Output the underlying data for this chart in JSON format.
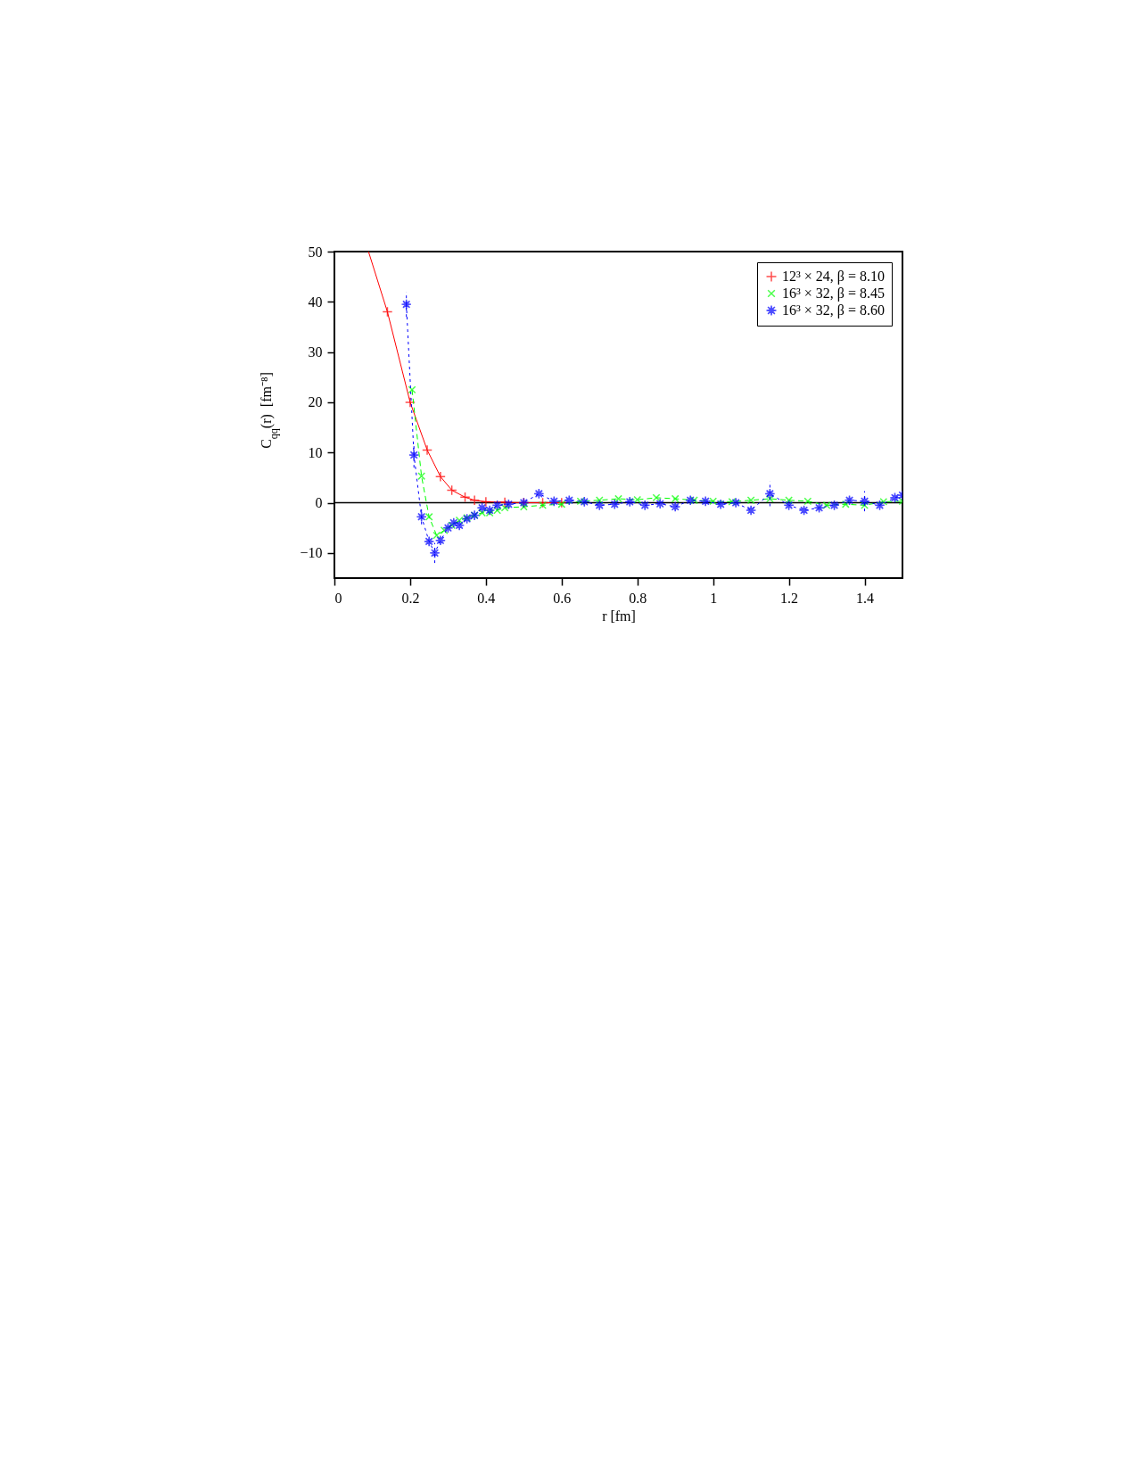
{
  "chart_data": {
    "type": "line",
    "xlabel": "r [fm]",
    "ylabel": "C$_{qq}$(r)  [fm⁻⁸]",
    "xlim": [
      0,
      1.5
    ],
    "xticks": [
      0,
      0.2,
      0.4,
      0.6,
      0.8,
      1,
      1.2,
      1.4
    ],
    "ylim": [
      -15,
      50
    ],
    "yticks": [
      -10,
      0,
      10,
      20,
      30,
      40,
      50
    ],
    "grid": false,
    "legend": "top right",
    "ref_lines": [
      {
        "axis": "y",
        "value": 0,
        "color": "#000000"
      }
    ],
    "series": [
      {
        "name": "12³ × 24, β = 8.10",
        "color": "#ff0000",
        "marker": "cross",
        "line_style": "solid",
        "x": [
          0.14,
          0.2,
          0.245,
          0.28,
          0.31,
          0.345,
          0.37,
          0.4,
          0.45,
          0.5,
          0.55,
          0.6
        ],
        "values": [
          38,
          20,
          10.5,
          5.2,
          2.5,
          1.1,
          0.5,
          0.2,
          0.1,
          0,
          0,
          0
        ]
      },
      {
        "type": "line",
        "color": "#ff0000",
        "marker": "none",
        "line_style": "solid",
        "x": [
          0.09,
          0.14
        ],
        "values": [
          50,
          38
        ]
      },
      {
        "name": "16³ × 32, β = 8.45",
        "color": "#00ff00",
        "marker": "cross",
        "line_style": "dashed",
        "x": [
          0.205,
          0.23,
          0.25,
          0.27,
          0.29,
          0.31,
          0.33,
          0.35,
          0.37,
          0.39,
          0.41,
          0.43,
          0.45,
          0.5,
          0.55,
          0.6,
          0.65,
          0.7,
          0.75,
          0.8,
          0.85,
          0.9,
          0.95,
          1.0,
          1.05,
          1.1,
          1.15,
          1.2,
          1.25,
          1.3,
          1.35,
          1.4,
          1.45,
          1.5
        ],
        "values": [
          22.5,
          5.3,
          -2.8,
          -6.5,
          -5.5,
          -4.5,
          -3.5,
          -3,
          -2.5,
          -2,
          -2,
          -1.5,
          -1,
          -0.8,
          -0.5,
          -0.3,
          0.3,
          0.5,
          0.8,
          0.6,
          1,
          0.8,
          0.5,
          0.3,
          0.2,
          0.5,
          0.8,
          0.5,
          0.3,
          -0.5,
          -0.3,
          -0.5,
          0.2,
          0.3
        ]
      },
      {
        "name": "16³ × 32, β = 8.60",
        "color": "#0000ff",
        "marker": "star",
        "line_style": "dotted",
        "x": [
          0.19,
          0.21,
          0.23,
          0.25,
          0.265,
          0.28,
          0.3,
          0.315,
          0.33,
          0.35,
          0.37,
          0.39,
          0.41,
          0.43,
          0.46,
          0.5,
          0.54,
          0.58,
          0.62,
          0.66,
          0.7,
          0.74,
          0.78,
          0.82,
          0.86,
          0.9,
          0.94,
          0.98,
          1.02,
          1.06,
          1.1,
          1.15,
          1.2,
          1.24,
          1.28,
          1.32,
          1.36,
          1.4,
          1.44,
          1.48,
          1.5
        ],
        "values": [
          39.5,
          9.5,
          -2.8,
          -7.7,
          -10,
          -7.5,
          -5,
          -4,
          -4.5,
          -3.2,
          -2.5,
          -1,
          -1.5,
          -0.5,
          -0.3,
          0,
          1.8,
          0.3,
          0.5,
          0.2,
          -0.5,
          -0.3,
          0.2,
          -0.5,
          -0.2,
          -0.8,
          0.5,
          0.3,
          -0.3,
          0,
          -1.5,
          1.8,
          -0.5,
          -1.5,
          -1,
          -0.5,
          0.5,
          0.3,
          -0.5,
          1,
          1.5
        ],
        "errors": [
          2.5,
          2.5,
          1.5,
          null,
          2,
          null,
          null,
          null,
          null,
          null,
          null,
          null,
          null,
          null,
          null,
          null,
          null,
          null,
          null,
          null,
          null,
          null,
          null,
          null,
          null,
          null,
          null,
          null,
          null,
          null,
          null,
          2.5,
          null,
          null,
          null,
          null,
          null,
          2,
          null,
          null,
          null
        ]
      }
    ]
  }
}
